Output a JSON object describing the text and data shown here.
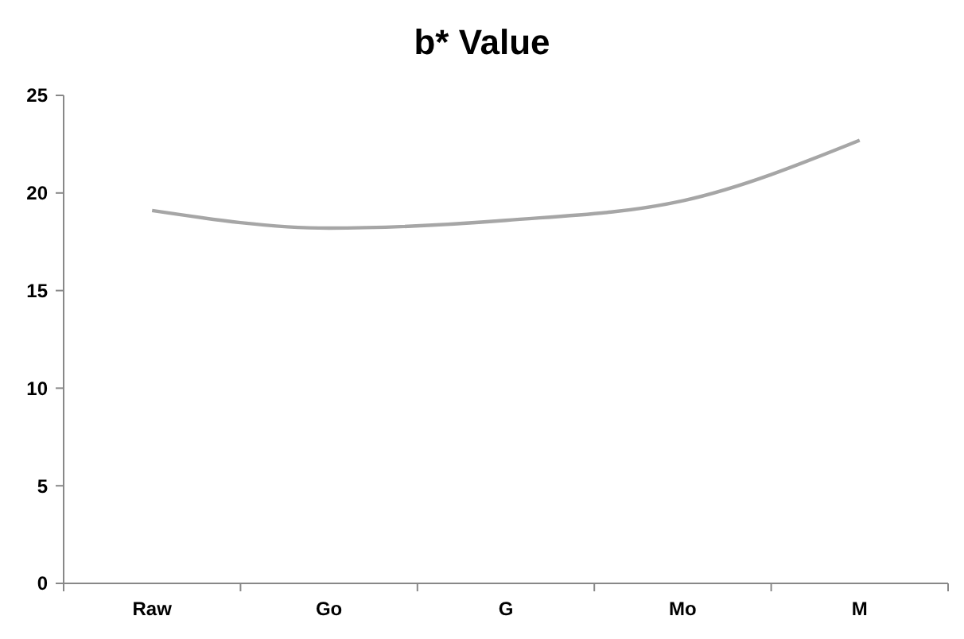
{
  "chart_data": {
    "type": "line",
    "title": "b* Value",
    "categories": [
      "Raw",
      "Go",
      "G",
      "Mo",
      "M"
    ],
    "series": [
      {
        "color": "#a6a6a6",
        "values": [
          19.1,
          18.2,
          18.6,
          19.6,
          22.7
        ]
      }
    ],
    "ylim": [
      0,
      25
    ],
    "yticks": [
      0,
      5,
      10,
      15,
      20,
      25
    ],
    "marker": "none",
    "line_style": "solid"
  }
}
